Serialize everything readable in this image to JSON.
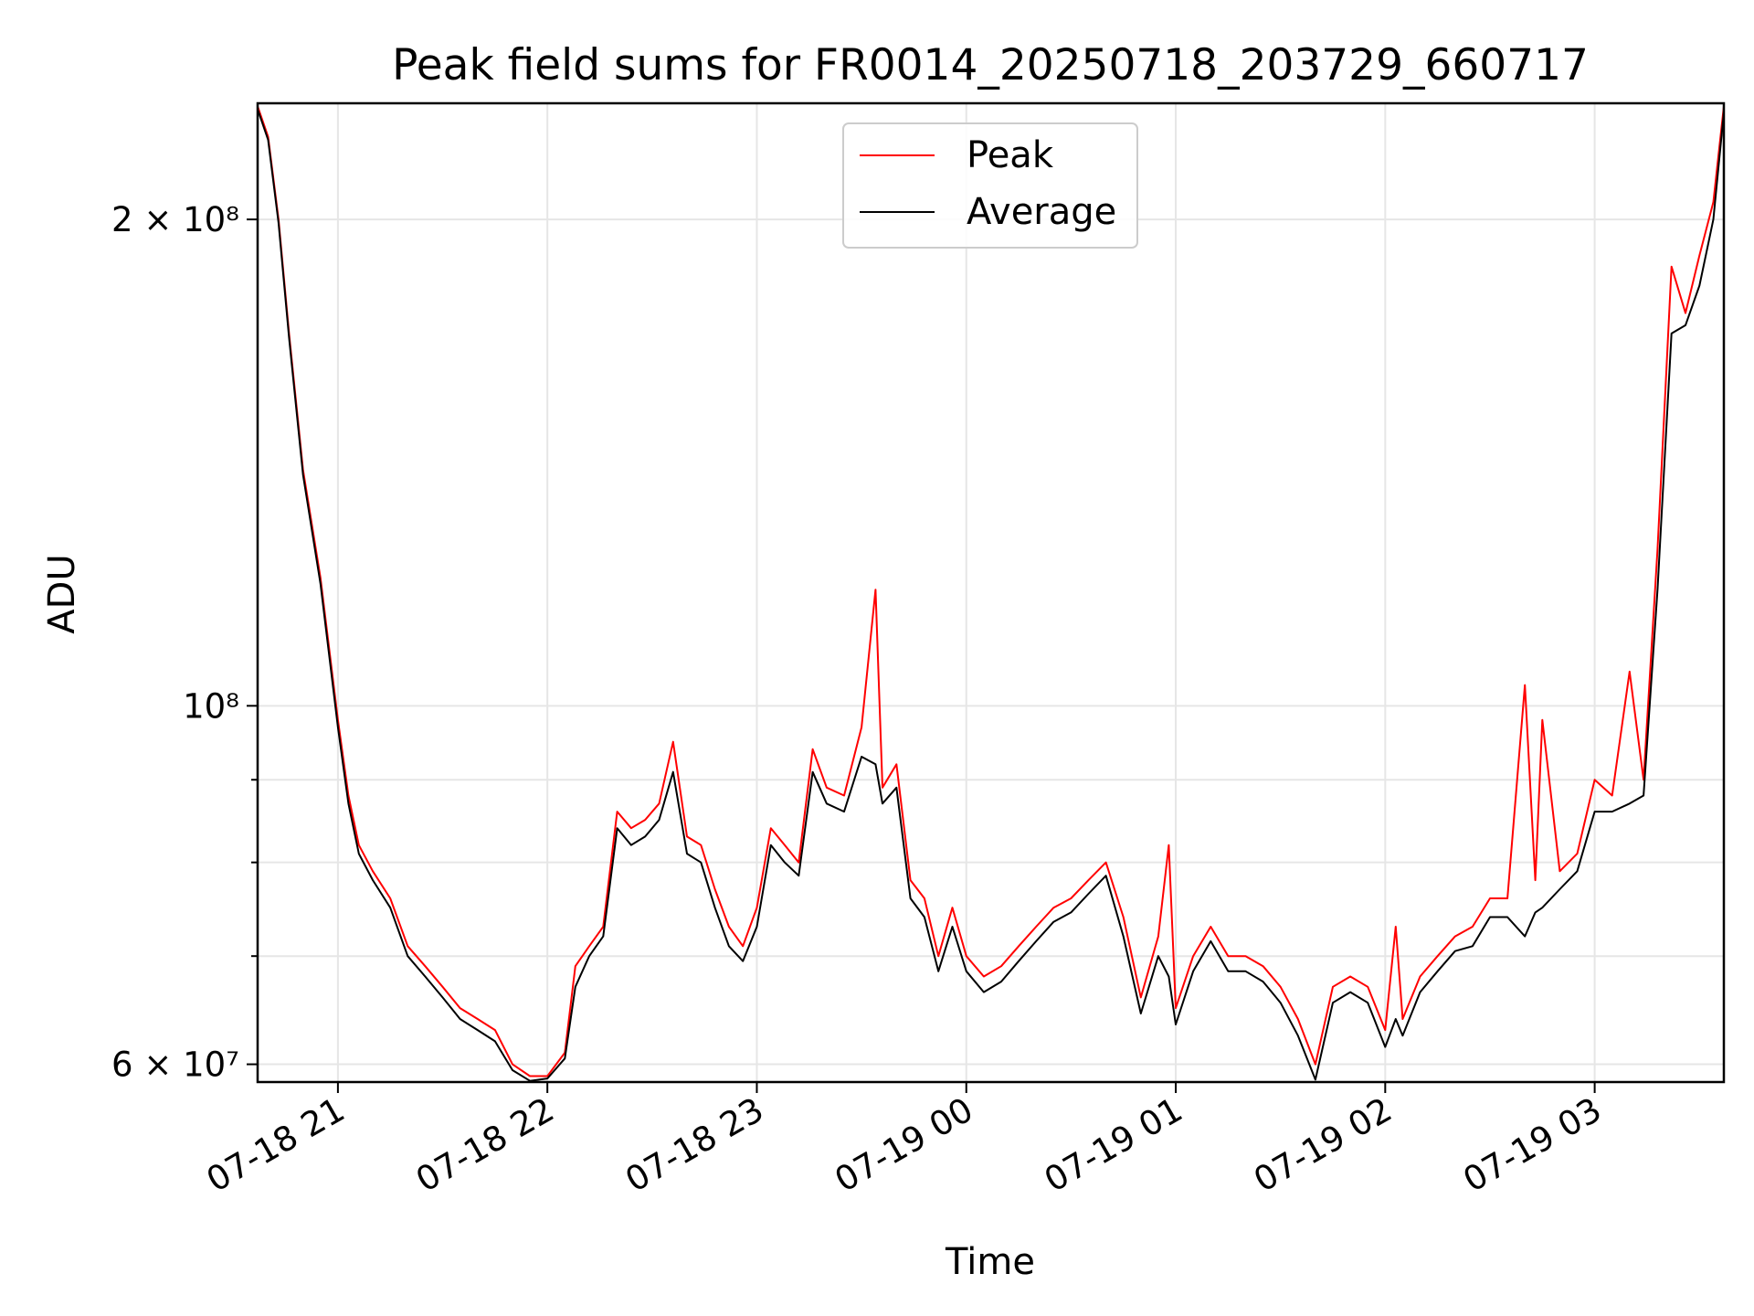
{
  "chart_data": {
    "type": "line",
    "title": "Peak field sums for FR0014_20250718_203729_660717",
    "xlabel": "Time",
    "ylabel": "ADU",
    "y_scale": "log",
    "xlim": [
      "2025-07-18 20:37",
      "2025-07-19 03:37"
    ],
    "ylim": [
      58500000,
      236000000
    ],
    "grid": true,
    "legend_position": "top-center",
    "x_ticks": [
      {
        "t": "2025-07-18 21:00",
        "label": "07-18 21"
      },
      {
        "t": "2025-07-18 22:00",
        "label": "07-18 22"
      },
      {
        "t": "2025-07-18 23:00",
        "label": "07-18 23"
      },
      {
        "t": "2025-07-19 00:00",
        "label": "07-19 00"
      },
      {
        "t": "2025-07-19 01:00",
        "label": "07-19 01"
      },
      {
        "t": "2025-07-19 02:00",
        "label": "07-19 02"
      },
      {
        "t": "2025-07-19 03:00",
        "label": "07-19 03"
      }
    ],
    "y_ticks": [
      {
        "value": 60000000,
        "label": "6 × 10⁷"
      },
      {
        "value": 100000000,
        "label": "10⁸"
      },
      {
        "value": 200000000,
        "label": "2 × 10⁸"
      }
    ],
    "y_minor_ticks": [
      70000000,
      80000000,
      90000000
    ],
    "series": [
      {
        "name": "Peak",
        "color": "#ff0000",
        "x": [
          "2025-07-18 20:37",
          "2025-07-18 20:40",
          "2025-07-18 20:43",
          "2025-07-18 20:46",
          "2025-07-18 20:50",
          "2025-07-18 20:55",
          "2025-07-18 21:00",
          "2025-07-18 21:03",
          "2025-07-18 21:06",
          "2025-07-18 21:10",
          "2025-07-18 21:15",
          "2025-07-18 21:20",
          "2025-07-18 21:25",
          "2025-07-18 21:30",
          "2025-07-18 21:35",
          "2025-07-18 21:40",
          "2025-07-18 21:45",
          "2025-07-18 21:50",
          "2025-07-18 21:55",
          "2025-07-18 22:00",
          "2025-07-18 22:05",
          "2025-07-18 22:08",
          "2025-07-18 22:12",
          "2025-07-18 22:16",
          "2025-07-18 22:20",
          "2025-07-18 22:24",
          "2025-07-18 22:28",
          "2025-07-18 22:32",
          "2025-07-18 22:36",
          "2025-07-18 22:40",
          "2025-07-18 22:44",
          "2025-07-18 22:48",
          "2025-07-18 22:52",
          "2025-07-18 22:56",
          "2025-07-18 23:00",
          "2025-07-18 23:04",
          "2025-07-18 23:08",
          "2025-07-18 23:12",
          "2025-07-18 23:16",
          "2025-07-18 23:20",
          "2025-07-18 23:25",
          "2025-07-18 23:30",
          "2025-07-18 23:34",
          "2025-07-18 23:36",
          "2025-07-18 23:40",
          "2025-07-18 23:44",
          "2025-07-18 23:48",
          "2025-07-18 23:52",
          "2025-07-18 23:56",
          "2025-07-19 00:00",
          "2025-07-19 00:05",
          "2025-07-19 00:10",
          "2025-07-19 00:15",
          "2025-07-19 00:20",
          "2025-07-19 00:25",
          "2025-07-19 00:30",
          "2025-07-19 00:35",
          "2025-07-19 00:40",
          "2025-07-19 00:45",
          "2025-07-19 00:50",
          "2025-07-19 00:55",
          "2025-07-19 00:58",
          "2025-07-19 01:00",
          "2025-07-19 01:05",
          "2025-07-19 01:10",
          "2025-07-19 01:15",
          "2025-07-19 01:20",
          "2025-07-19 01:25",
          "2025-07-19 01:30",
          "2025-07-19 01:35",
          "2025-07-19 01:40",
          "2025-07-19 01:45",
          "2025-07-19 01:50",
          "2025-07-19 01:55",
          "2025-07-19 02:00",
          "2025-07-19 02:03",
          "2025-07-19 02:05",
          "2025-07-19 02:10",
          "2025-07-19 02:15",
          "2025-07-19 02:20",
          "2025-07-19 02:25",
          "2025-07-19 02:30",
          "2025-07-19 02:35",
          "2025-07-19 02:40",
          "2025-07-19 02:43",
          "2025-07-19 02:45",
          "2025-07-19 02:50",
          "2025-07-19 02:55",
          "2025-07-19 03:00",
          "2025-07-19 03:05",
          "2025-07-19 03:10",
          "2025-07-19 03:14",
          "2025-07-19 03:18",
          "2025-07-19 03:22",
          "2025-07-19 03:26",
          "2025-07-19 03:30",
          "2025-07-19 03:34",
          "2025-07-19 03:37"
        ],
        "values": [
          235000000,
          225000000,
          200000000,
          170000000,
          140000000,
          120000000,
          98000000,
          88000000,
          82000000,
          79000000,
          76000000,
          71000000,
          69000000,
          67000000,
          65000000,
          64000000,
          63000000,
          60000000,
          59000000,
          59000000,
          61000000,
          69000000,
          71000000,
          73000000,
          86000000,
          84000000,
          85000000,
          87000000,
          95000000,
          83000000,
          82000000,
          77000000,
          73000000,
          71000000,
          75000000,
          84000000,
          82000000,
          80000000,
          94000000,
          89000000,
          88000000,
          97000000,
          118000000,
          89000000,
          92000000,
          78000000,
          76000000,
          70000000,
          75000000,
          70000000,
          68000000,
          69000000,
          71000000,
          73000000,
          75000000,
          76000000,
          78000000,
          80000000,
          74000000,
          66000000,
          72000000,
          82000000,
          65000000,
          70000000,
          73000000,
          70000000,
          70000000,
          69000000,
          67000000,
          64000000,
          60000000,
          67000000,
          68000000,
          67000000,
          63000000,
          73000000,
          64000000,
          68000000,
          70000000,
          72000000,
          73000000,
          76000000,
          76000000,
          103000000,
          78000000,
          98000000,
          79000000,
          81000000,
          90000000,
          88000000,
          105000000,
          90000000,
          125000000,
          187000000,
          175000000,
          190000000,
          205000000,
          235000000
        ]
      },
      {
        "name": "Average",
        "color": "#000000",
        "x": [
          "2025-07-18 20:37",
          "2025-07-18 20:40",
          "2025-07-18 20:43",
          "2025-07-18 20:46",
          "2025-07-18 20:50",
          "2025-07-18 20:55",
          "2025-07-18 21:00",
          "2025-07-18 21:03",
          "2025-07-18 21:06",
          "2025-07-18 21:10",
          "2025-07-18 21:15",
          "2025-07-18 21:20",
          "2025-07-18 21:25",
          "2025-07-18 21:30",
          "2025-07-18 21:35",
          "2025-07-18 21:40",
          "2025-07-18 21:45",
          "2025-07-18 21:50",
          "2025-07-18 21:55",
          "2025-07-18 22:00",
          "2025-07-18 22:05",
          "2025-07-18 22:08",
          "2025-07-18 22:12",
          "2025-07-18 22:16",
          "2025-07-18 22:20",
          "2025-07-18 22:24",
          "2025-07-18 22:28",
          "2025-07-18 22:32",
          "2025-07-18 22:36",
          "2025-07-18 22:40",
          "2025-07-18 22:44",
          "2025-07-18 22:48",
          "2025-07-18 22:52",
          "2025-07-18 22:56",
          "2025-07-18 23:00",
          "2025-07-18 23:04",
          "2025-07-18 23:08",
          "2025-07-18 23:12",
          "2025-07-18 23:16",
          "2025-07-18 23:20",
          "2025-07-18 23:25",
          "2025-07-18 23:30",
          "2025-07-18 23:34",
          "2025-07-18 23:36",
          "2025-07-18 23:40",
          "2025-07-18 23:44",
          "2025-07-18 23:48",
          "2025-07-18 23:52",
          "2025-07-18 23:56",
          "2025-07-19 00:00",
          "2025-07-19 00:05",
          "2025-07-19 00:10",
          "2025-07-19 00:15",
          "2025-07-19 00:20",
          "2025-07-19 00:25",
          "2025-07-19 00:30",
          "2025-07-19 00:35",
          "2025-07-19 00:40",
          "2025-07-19 00:45",
          "2025-07-19 00:50",
          "2025-07-19 00:55",
          "2025-07-19 00:58",
          "2025-07-19 01:00",
          "2025-07-19 01:05",
          "2025-07-19 01:10",
          "2025-07-19 01:15",
          "2025-07-19 01:20",
          "2025-07-19 01:25",
          "2025-07-19 01:30",
          "2025-07-19 01:35",
          "2025-07-19 01:40",
          "2025-07-19 01:45",
          "2025-07-19 01:50",
          "2025-07-19 01:55",
          "2025-07-19 02:00",
          "2025-07-19 02:03",
          "2025-07-19 02:05",
          "2025-07-19 02:10",
          "2025-07-19 02:15",
          "2025-07-19 02:20",
          "2025-07-19 02:25",
          "2025-07-19 02:30",
          "2025-07-19 02:35",
          "2025-07-19 02:40",
          "2025-07-19 02:43",
          "2025-07-19 02:45",
          "2025-07-19 02:50",
          "2025-07-19 02:55",
          "2025-07-19 03:00",
          "2025-07-19 03:05",
          "2025-07-19 03:10",
          "2025-07-19 03:14",
          "2025-07-19 03:18",
          "2025-07-19 03:22",
          "2025-07-19 03:26",
          "2025-07-19 03:30",
          "2025-07-19 03:34",
          "2025-07-19 03:37"
        ],
        "values": [
          234000000,
          224000000,
          199000000,
          169000000,
          139000000,
          119000000,
          97000000,
          87000000,
          81000000,
          78000000,
          75000000,
          70000000,
          68000000,
          66000000,
          64000000,
          63000000,
          62000000,
          59500000,
          58600000,
          58800000,
          60500000,
          67000000,
          70000000,
          72000000,
          84000000,
          82000000,
          83000000,
          85000000,
          91000000,
          81000000,
          80000000,
          75000000,
          71000000,
          69500000,
          73000000,
          82000000,
          80000000,
          78500000,
          91000000,
          87000000,
          86000000,
          93000000,
          92000000,
          87000000,
          89000000,
          76000000,
          74000000,
          68500000,
          73000000,
          68500000,
          66500000,
          67500000,
          69500000,
          71500000,
          73500000,
          74500000,
          76500000,
          78500000,
          72000000,
          64500000,
          70000000,
          68000000,
          63500000,
          68500000,
          71500000,
          68500000,
          68500000,
          67500000,
          65500000,
          62500000,
          58700000,
          65500000,
          66500000,
          65500000,
          61500000,
          64000000,
          62500000,
          66500000,
          68500000,
          70500000,
          71000000,
          74000000,
          74000000,
          72000000,
          74500000,
          75000000,
          77000000,
          79000000,
          86000000,
          86000000,
          87000000,
          88000000,
          118000000,
          170000000,
          172000000,
          182000000,
          200000000,
          233000000
        ]
      }
    ]
  }
}
